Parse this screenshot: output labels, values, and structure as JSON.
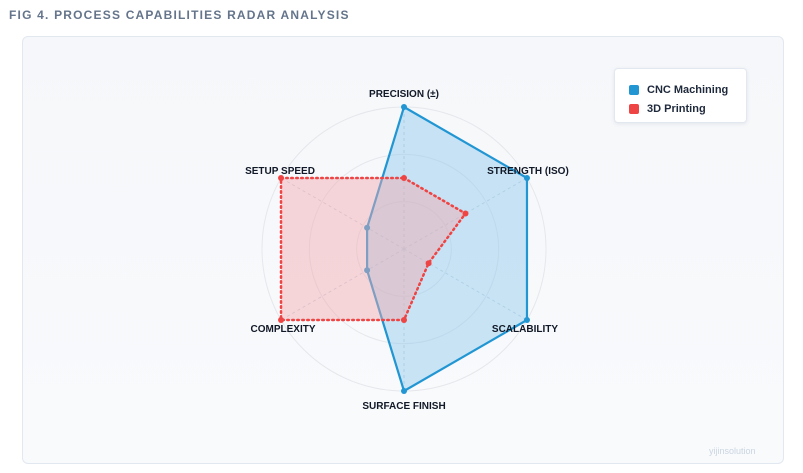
{
  "figure": {
    "title": "FIG 4. PROCESS CAPABILITIES RADAR ANALYSIS",
    "watermark": "yijinsolution"
  },
  "legend": {
    "items": [
      {
        "label": "CNC Machining",
        "color": "#2196d3"
      },
      {
        "label": "3D Printing",
        "color": "#ef4444"
      }
    ]
  },
  "chart_data": {
    "type": "radar",
    "axes": [
      "PRECISION (±)",
      "STRENGTH (ISO)",
      "SCALABILITY",
      "SURFACE FINISH",
      "COMPLEXITY",
      "SETUP SPEED"
    ],
    "range": [
      0,
      10
    ],
    "grid_levels": 3,
    "series": [
      {
        "name": "CNC Machining",
        "values": [
          10,
          10,
          10,
          10,
          3,
          3
        ],
        "color": "#2196d3",
        "fill": "#8cc8eb",
        "line": "solid"
      },
      {
        "name": "3D Printing",
        "values": [
          5,
          5,
          2,
          5,
          10,
          10
        ],
        "color": "#ef4444",
        "fill": "#f2a8ae",
        "line": "dotted"
      }
    ]
  }
}
